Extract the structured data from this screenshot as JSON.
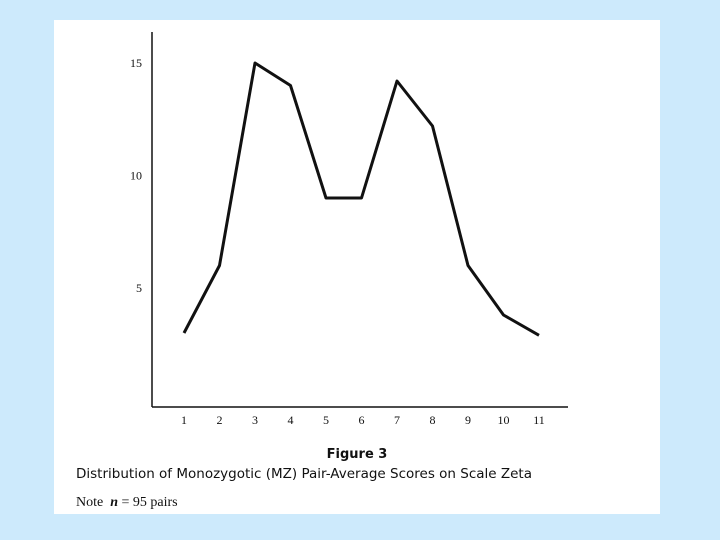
{
  "colors": {
    "background": "#cdeafc",
    "paper": "#ffffff",
    "ink": "#111111"
  },
  "caption": {
    "title": "Figure 3",
    "subtitle": "Distribution of Monozygotic (MZ) Pair-Average Scores on Scale Zeta",
    "note_prefix": "Note",
    "note_var": "n",
    "note_rest": "= 95 pairs"
  },
  "chart_data": {
    "type": "line",
    "title": "Figure 3",
    "subtitle": "Distribution of Monozygotic (MZ) Pair-Average Scores on Scale Zeta",
    "xlabel": "",
    "ylabel": "",
    "x": [
      1,
      2,
      3,
      4,
      5,
      6,
      7,
      8,
      9,
      10,
      11
    ],
    "xticks": [
      "1",
      "2",
      "3",
      "4",
      "5",
      "6",
      "7",
      "8",
      "9",
      "10",
      "11"
    ],
    "yticks": [
      "5",
      "10",
      "15"
    ],
    "ytick_values": [
      5,
      10,
      15
    ],
    "series": [
      {
        "values": [
          3,
          6,
          15,
          14,
          9,
          9,
          14.2,
          12.2,
          6,
          3.8,
          2.9
        ]
      }
    ],
    "xlim": [
      0,
      12
    ],
    "ylim": [
      0,
      16
    ],
    "grid": false,
    "legend": "none"
  }
}
